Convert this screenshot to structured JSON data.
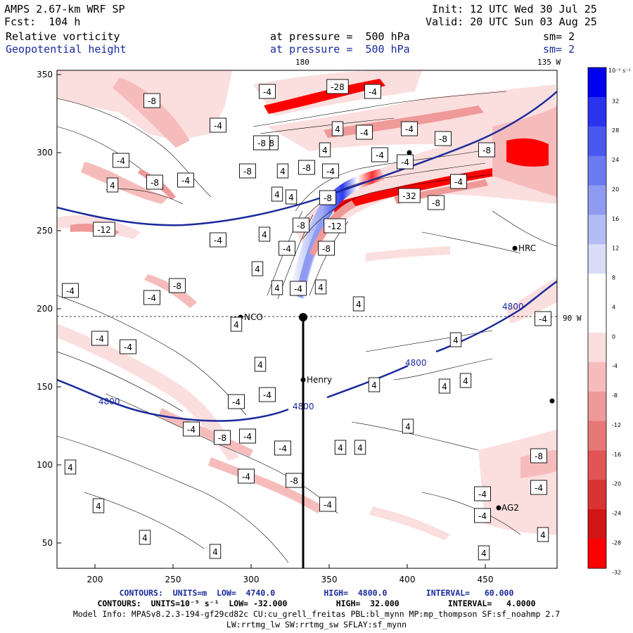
{
  "header": {
    "model": "AMPS 2.67-km WRF SP",
    "forecast": "Fcst:  104 h",
    "init": "Init: 12 UTC Wed 30 Jul 25",
    "valid": "Valid: 20 UTC Sun 03 Aug 25",
    "field1": "Relative vorticity",
    "field2": "Geopotential height",
    "level1": "at pressure =  500 hPa",
    "level2": "at pressure =  500 hPa",
    "sm1": "sm= 2",
    "sm2": "sm= 2",
    "lon_top_left": "180",
    "lon_top_right": "135 W",
    "lon_right": "90 W"
  },
  "axes": {
    "x_ticks": [
      "200",
      "250",
      "300",
      "350",
      "400",
      "450"
    ],
    "y_ticks": [
      "350",
      "300",
      "250",
      "200",
      "150",
      "100",
      "50"
    ]
  },
  "colorbar": {
    "unit": "10⁻⁵ s⁻¹",
    "labels": [
      "32",
      "28",
      "24",
      "20",
      "16",
      "12",
      "8",
      "4",
      "0",
      "-4",
      "-8",
      "-12",
      "-16",
      "-20",
      "-24",
      "-28",
      "-32"
    ],
    "colors": [
      "#0000ee",
      "#2a33ee",
      "#4a58ee",
      "#6b7aef",
      "#8f9bf1",
      "#b4bcf5",
      "#d9ddfa",
      "#ffffff",
      "#ffffff",
      "#fbdede",
      "#f6bcbc",
      "#ef9999",
      "#e87777",
      "#e15555",
      "#da3333",
      "#d31414",
      "#ff0000"
    ]
  },
  "stations": [
    "NCO",
    "Henry",
    "HRC",
    "AG2"
  ],
  "height_contour_label": "4800",
  "vort_labels": [
    "-4",
    "-8",
    "-12",
    "4",
    "-28",
    "-32"
  ],
  "footer": {
    "line1": "CONTOURS:  UNITS=m  LOW=  4740.0          HIGH=  4800.0        INTERVAL=   60.000",
    "line2": "CONTOURS:  UNITS=10⁻⁵ s⁻¹  LOW= -32.000          HIGH=  32.000          INTERVAL=   4.0000",
    "line3": "Model Info: MPASv8.2.3-194-gf29cd82c CU:cu_grell_freitas PBL:bl_mynn MP:mp_thompson SF:sf_noahmp 2.7",
    "line4": "LW:rrtmg_lw SW:rrtmg_sw SFLAY:sf_mynn"
  }
}
